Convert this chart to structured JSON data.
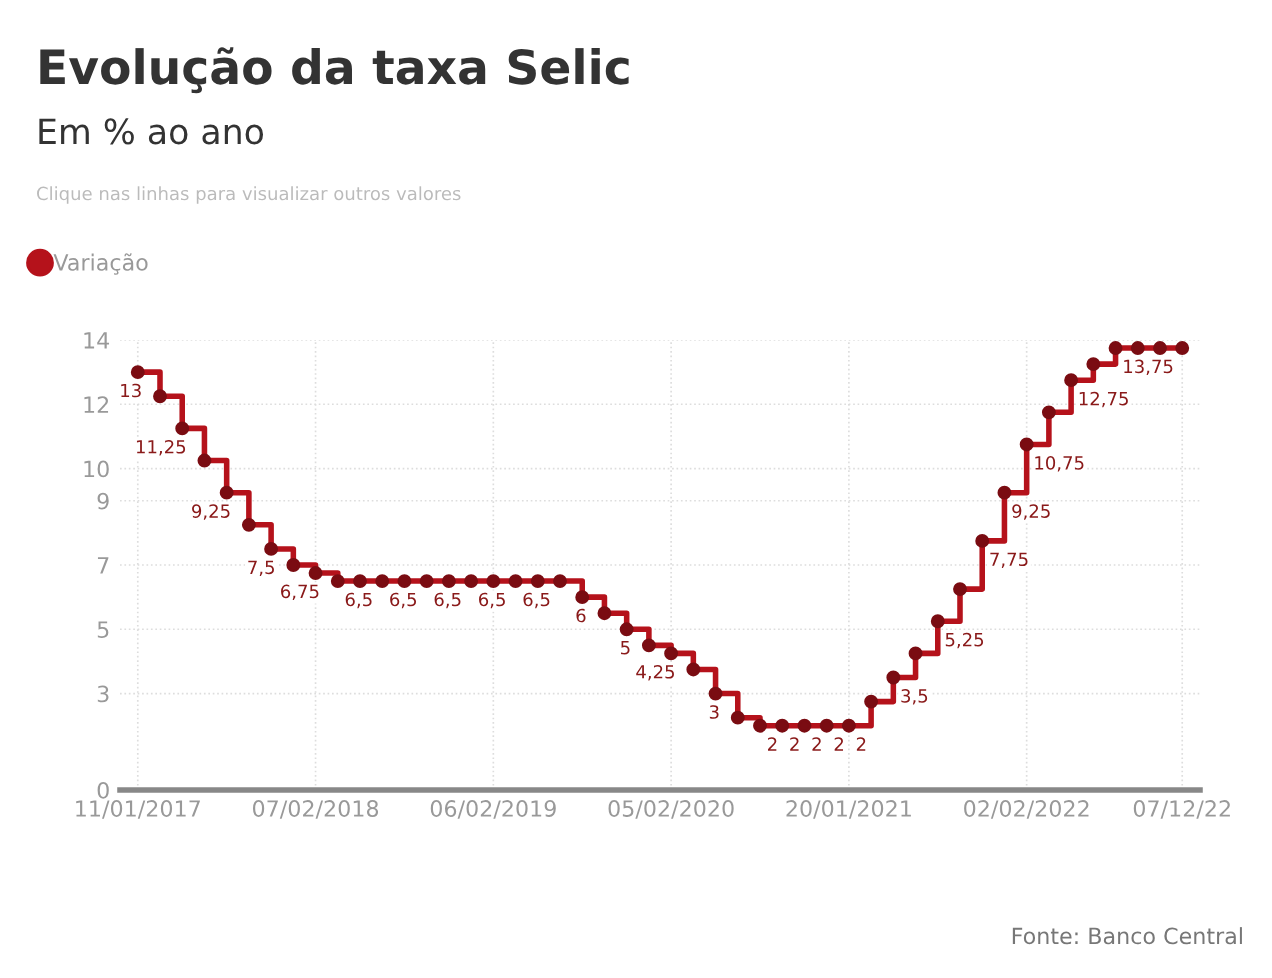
{
  "chart_data": {
    "type": "step",
    "title": "Evolução da taxa Selic",
    "subtitle": "Em % ao ano",
    "annotations": [
      "Clique nas linhas para visualizar outros valores",
      "Fonte: Banco Central"
    ],
    "categories": [
      "11/01/2017",
      null,
      null,
      null,
      null,
      null,
      null,
      null,
      "07/02/2018",
      null,
      null,
      null,
      null,
      null,
      null,
      null,
      "06/02/2019",
      null,
      null,
      null,
      null,
      null,
      null,
      null,
      "05/02/2020",
      null,
      null,
      null,
      null,
      null,
      null,
      null,
      "20/01/2021",
      null,
      null,
      null,
      null,
      null,
      null,
      null,
      "02/02/2022",
      null,
      null,
      null,
      null,
      null,
      null,
      "07/12/22"
    ],
    "series": [
      {
        "name": "Variação",
        "color": "#b5121b",
        "values": [
          13,
          12.25,
          11.25,
          10.25,
          9.25,
          8.25,
          7.5,
          7,
          6.75,
          6.5,
          6.5,
          6.5,
          6.5,
          6.5,
          6.5,
          6.5,
          6.5,
          6.5,
          6.5,
          6.5,
          6,
          5.5,
          5,
          4.5,
          4.25,
          3.75,
          3,
          2.25,
          2,
          2,
          2,
          2,
          2,
          2.75,
          3.5,
          4.25,
          5.25,
          6.25,
          7.75,
          9.25,
          10.75,
          11.75,
          12.75,
          13.25,
          13.75,
          13.75,
          13.75,
          13.75
        ],
        "value_labels": [
          "13",
          null,
          "11,25",
          null,
          "9,25",
          null,
          "7,5",
          null,
          "6,75",
          "6,5",
          null,
          "6,5",
          null,
          "6,5",
          null,
          "6,5",
          null,
          "6,5",
          null,
          null,
          "6",
          null,
          "5",
          null,
          "4,25",
          null,
          "3",
          null,
          "2",
          "2",
          "2",
          "2",
          "2",
          null,
          "3,5",
          null,
          "5,25",
          null,
          "7,75",
          "9,25",
          "10,75",
          null,
          "12,75",
          null,
          "13,75",
          null,
          null,
          null
        ]
      }
    ],
    "ylim": [
      0,
      14
    ],
    "yticks": [
      0,
      3,
      5,
      7,
      9,
      10,
      12,
      14
    ],
    "grid": true,
    "legend": "top left",
    "marker": "circle",
    "line_style": "solid"
  }
}
